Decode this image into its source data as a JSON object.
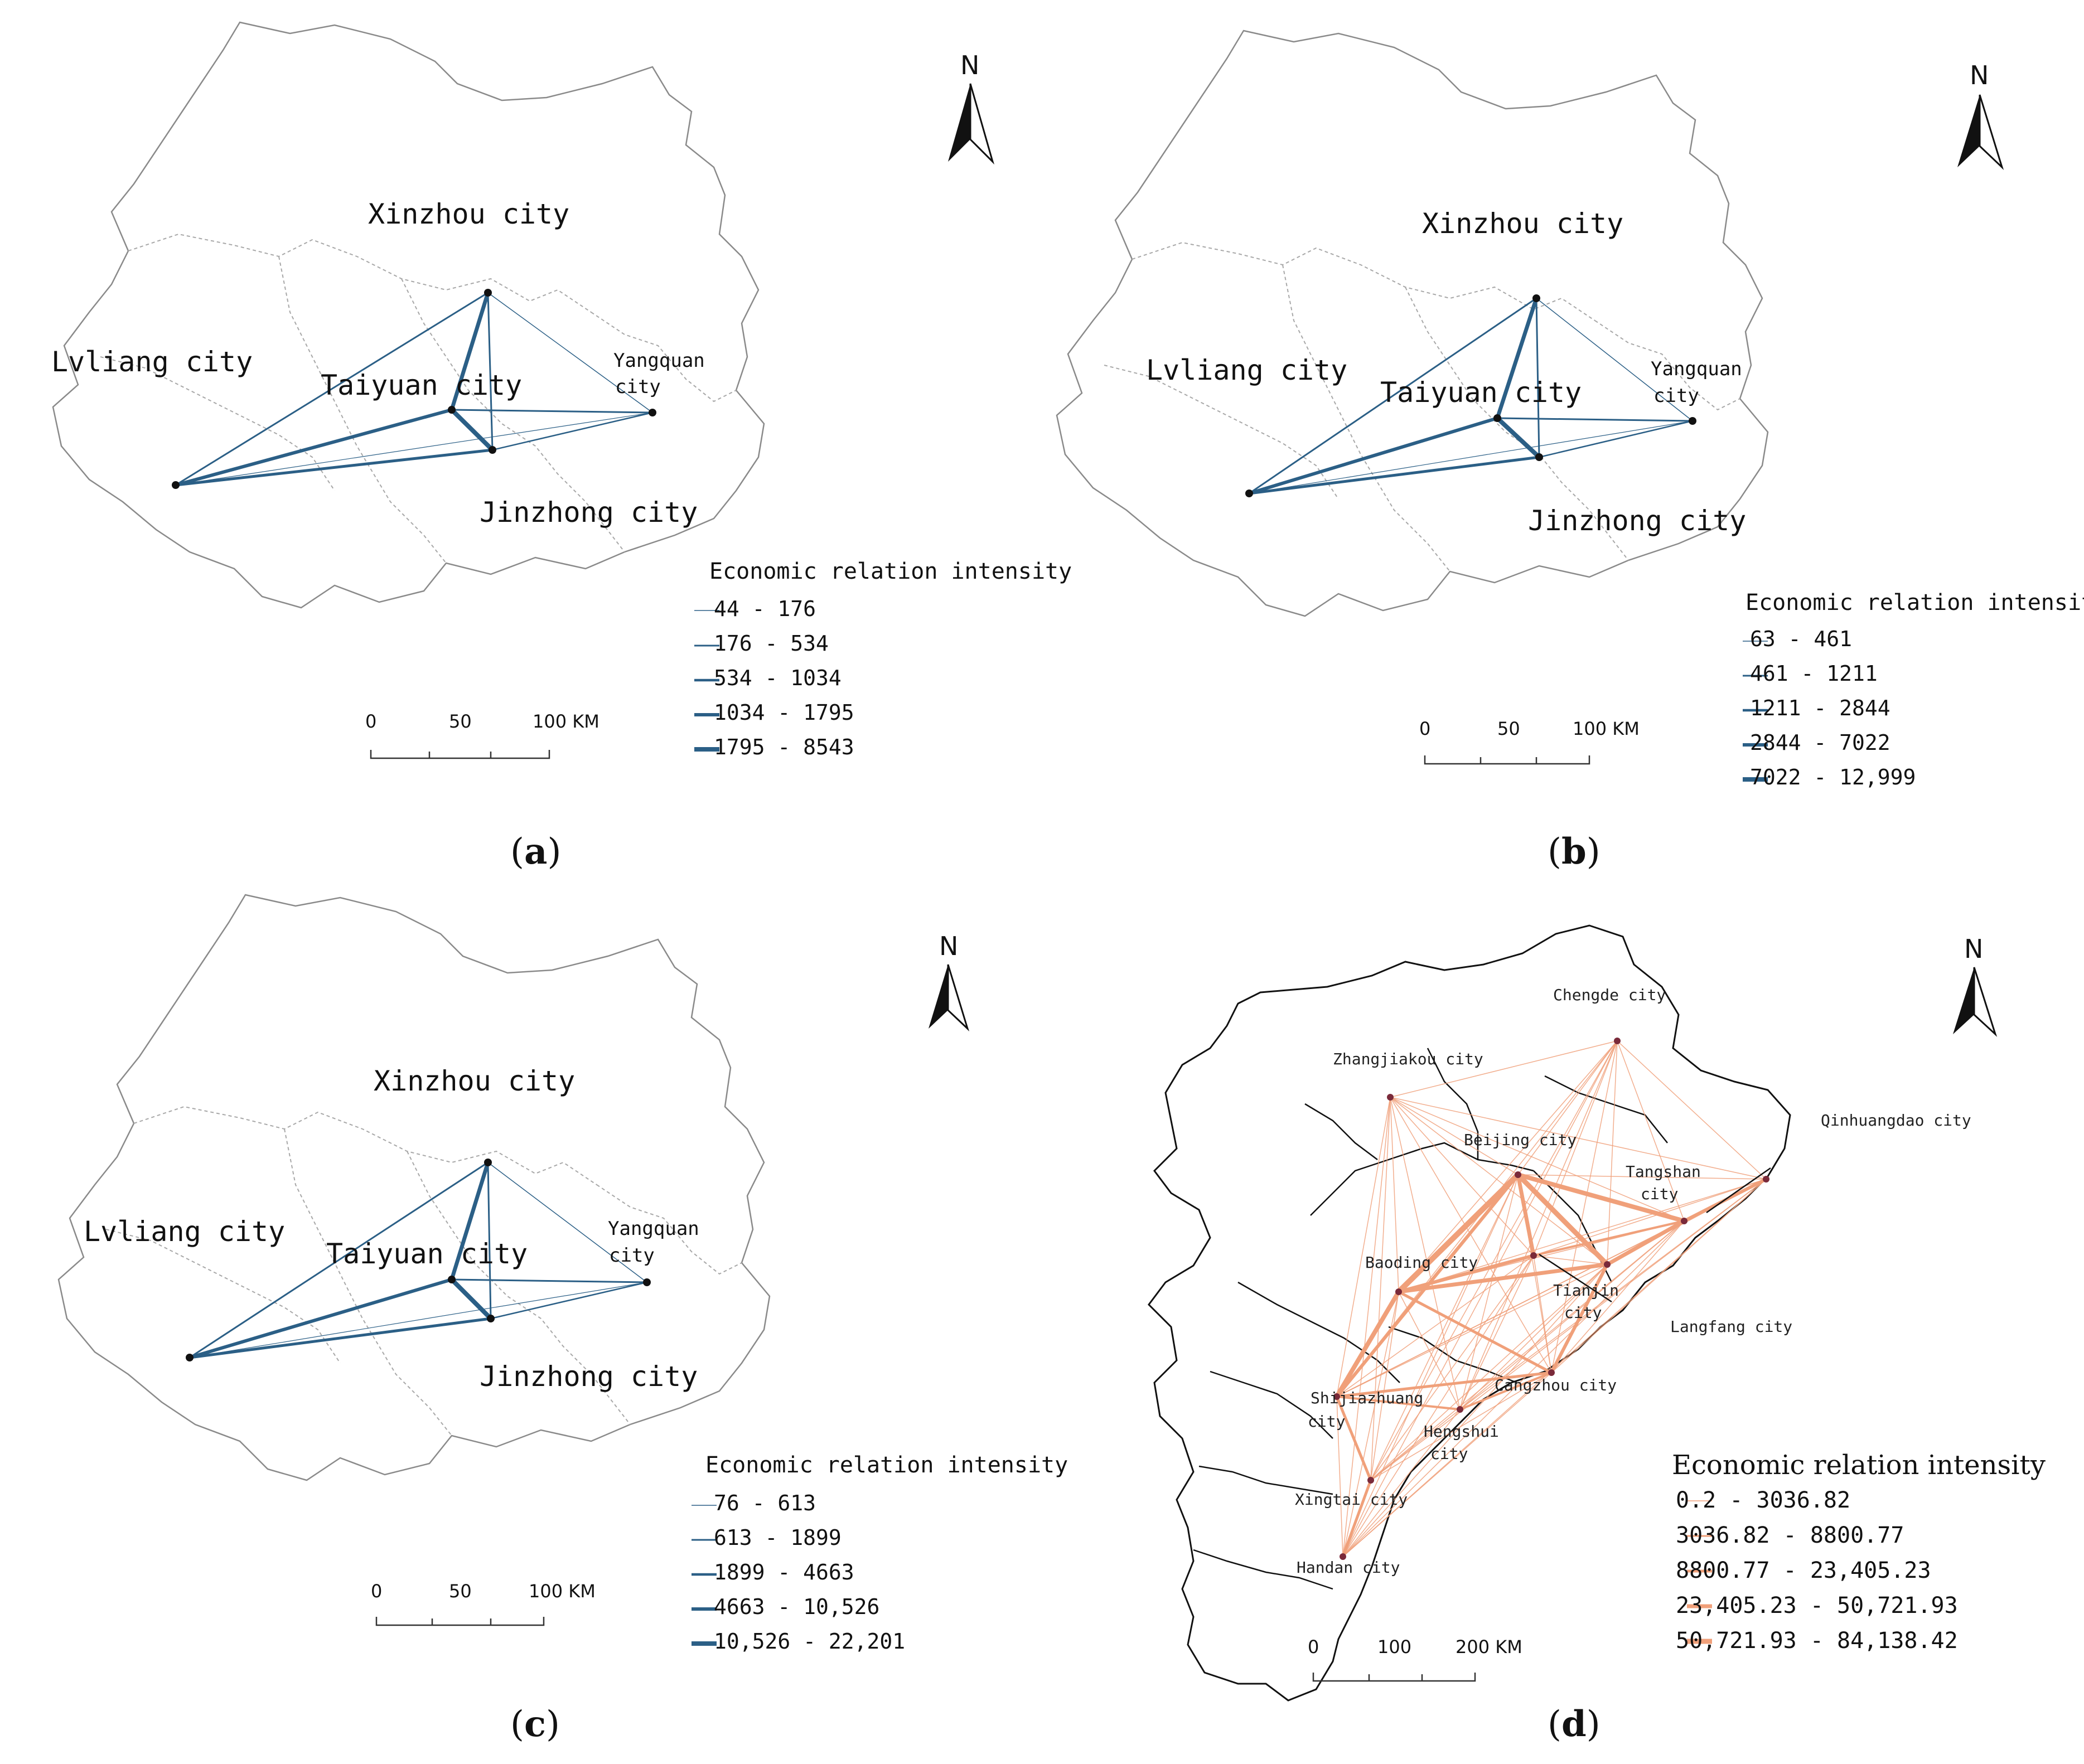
{
  "north_label": "N",
  "colors": {
    "shanxi_link": "#2b5f86",
    "hebei_link": "#f0a07a",
    "boundary": "#888888",
    "hebei_boundary": "#111111",
    "node": "#111111",
    "hebei_node": "#7a2a3a"
  },
  "panels": {
    "a": {
      "caption_letter": "a",
      "cities": {
        "xinzhou": "Xinzhou city",
        "lvliang": "Lvliang city",
        "taiyuan": "Taiyuan city",
        "yangquan_1": "Yangquan",
        "yangquan_2": "city",
        "jinzhong": "Jinzhong city"
      },
      "legend": {
        "title": "Economic relation intensity",
        "items": [
          "44  -  176",
          "176  -  534",
          "534  -  1034",
          "1034  -  1795",
          "1795  -  8543"
        ]
      },
      "scale": {
        "t0": "0",
        "t1": "50",
        "t2": "100 KM"
      }
    },
    "b": {
      "caption_letter": "b",
      "cities": {
        "xinzhou": "Xinzhou city",
        "lvliang": "Lvliang city",
        "taiyuan": "Taiyuan city",
        "yangquan_1": "Yangquan",
        "yangquan_2": "city",
        "jinzhong": "Jinzhong city"
      },
      "legend": {
        "title": "Economic relation intensity",
        "items": [
          "63  -  461",
          "461  -  1211",
          "1211  -  2844",
          "2844  -  7022",
          "7022  -  12,999"
        ]
      },
      "scale": {
        "t0": "0",
        "t1": "50",
        "t2": "100 KM"
      }
    },
    "c": {
      "caption_letter": "c",
      "cities": {
        "xinzhou": "Xinzhou city",
        "lvliang": "Lvliang city",
        "taiyuan": "Taiyuan city",
        "yangquan_1": "Yangquan",
        "yangquan_2": "city",
        "jinzhong": "Jinzhong city"
      },
      "legend": {
        "title": "Economic relation intensity",
        "items": [
          "76  -  613",
          "613  -  1899",
          "1899  -  4663",
          "4663  -  10,526",
          "10,526  -  22,201"
        ]
      },
      "scale": {
        "t0": "0",
        "t1": "50",
        "t2": "100 KM"
      }
    },
    "d": {
      "caption_letter": "d",
      "cities": {
        "chengde": "Chengde city",
        "zhangjiakou": "Zhangjiakou city",
        "qinhuangdao": "Qinhuangdao city",
        "beijing": "Beijing city",
        "tangshan_1": "Tangshan",
        "tangshan_2": "city",
        "baoding": "Baoding city",
        "tianjin_1": "Tianjin",
        "tianjin_2": "city",
        "langfang": "Langfang city",
        "shijiazhuang_1": "Shijiazhuang",
        "shijiazhuang_2": "city",
        "cangzhou": "Cangzhou city",
        "hengshui_1": "Hengshui",
        "hengshui_2": "city",
        "xingtai": "Xingtai city",
        "handan": "Handan city"
      },
      "legend": {
        "title": "Economic relation intensity",
        "items": [
          "0.2  -  3036.82",
          "3036.82  -  8800.77",
          "8800.77  -  23,405.23",
          "23,405.23  -  50,721.93",
          "50,721.93  -  84,138.42"
        ]
      },
      "scale": {
        "t0": "0",
        "t1": "100",
        "t2": "200 KM"
      }
    }
  }
}
